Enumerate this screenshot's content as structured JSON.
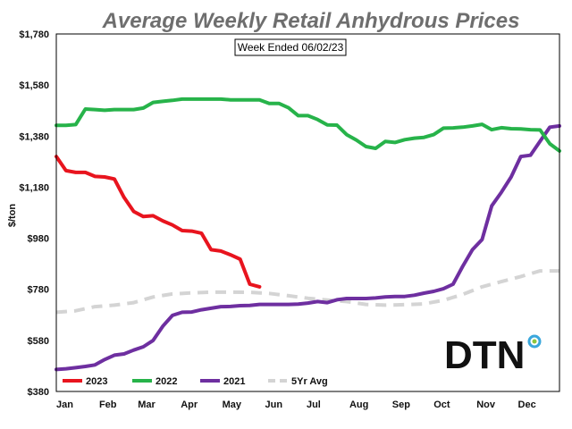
{
  "chart_data": {
    "type": "line",
    "title": "Average Weekly Retail Anhydrous Prices",
    "subtitle": "Week Ended 06/02/23",
    "ylabel": "$/ton",
    "xlabel": "",
    "ylim": [
      380,
      1780
    ],
    "xlim": [
      0,
      52
    ],
    "y_ticks": [
      "$1,780",
      "$1,580",
      "$1,380",
      "$1,180",
      "$980",
      "$780",
      "$580",
      "$380"
    ],
    "y_tick_values": [
      1780,
      1580,
      1380,
      1180,
      980,
      780,
      580,
      380
    ],
    "x_ticks": [
      "Jan",
      "Feb",
      "Mar",
      "Apr",
      "May",
      "Jun",
      "Jul",
      "Aug",
      "Sep",
      "Oct",
      "Nov",
      "Dec"
    ],
    "x_tick_values": [
      0,
      4.43,
      8.43,
      12.86,
      17.14,
      21.57,
      25.86,
      30.29,
      34.71,
      39,
      43.43,
      47.71
    ],
    "grid": false,
    "legend_placement": "bottom-left",
    "series": [
      {
        "name": "2023",
        "color": "#e8141e",
        "dashed": false,
        "x": [
          0,
          1,
          2,
          3,
          4,
          5,
          6,
          7,
          8,
          9,
          10,
          11,
          12,
          13,
          14,
          15,
          16,
          17,
          18,
          19,
          20,
          21
        ],
        "y": [
          1300,
          1245,
          1238,
          1238,
          1222,
          1220,
          1212,
          1140,
          1085,
          1065,
          1068,
          1048,
          1032,
          1010,
          1008,
          1000,
          935,
          930,
          915,
          898,
          800,
          790
        ]
      },
      {
        "name": "2022",
        "color": "#27b34a",
        "dashed": false,
        "x": [
          0,
          1,
          2,
          3,
          4,
          5,
          6,
          7,
          8,
          9,
          10,
          11,
          12,
          13,
          14,
          15,
          16,
          17,
          18,
          19,
          20,
          21,
          22,
          23,
          24,
          25,
          26,
          27,
          28,
          29,
          30,
          31,
          32,
          33,
          34,
          35,
          36,
          37,
          38,
          39,
          40,
          41,
          42,
          43,
          44,
          45,
          46,
          47,
          48,
          49,
          50,
          51,
          52
        ],
        "y": [
          1422,
          1422,
          1425,
          1486,
          1484,
          1481,
          1484,
          1484,
          1484,
          1490,
          1512,
          1516,
          1520,
          1525,
          1525,
          1525,
          1525,
          1525,
          1522,
          1522,
          1522,
          1522,
          1508,
          1508,
          1491,
          1460,
          1460,
          1445,
          1424,
          1423,
          1386,
          1365,
          1339,
          1332,
          1359,
          1355,
          1366,
          1372,
          1375,
          1386,
          1411,
          1412,
          1415,
          1420,
          1426,
          1405,
          1413,
          1409,
          1408,
          1405,
          1404,
          1350,
          1322
        ]
      },
      {
        "name": "2021",
        "color": "#6e2fa0",
        "dashed": false,
        "x": [
          0,
          1,
          2,
          3,
          4,
          5,
          6,
          7,
          8,
          9,
          10,
          11,
          12,
          13,
          14,
          15,
          16,
          17,
          18,
          19,
          20,
          21,
          22,
          23,
          24,
          25,
          26,
          27,
          28,
          29,
          30,
          31,
          32,
          33,
          34,
          35,
          36,
          37,
          38,
          39,
          40,
          41,
          42,
          43,
          44,
          45,
          46,
          47,
          48,
          49,
          50,
          51,
          52
        ],
        "y": [
          466,
          469,
          473,
          478,
          484,
          505,
          522,
          527,
          542,
          555,
          580,
          635,
          678,
          690,
          691,
          700,
          706,
          712,
          713,
          716,
          717,
          721,
          721,
          721,
          721,
          722,
          726,
          732,
          728,
          739,
          744,
          744,
          744,
          746,
          750,
          752,
          752,
          757,
          765,
          772,
          782,
          800,
          870,
          935,
          975,
          1107,
          1160,
          1220,
          1300,
          1305,
          1360,
          1415,
          1420
        ]
      },
      {
        "name": "5Yr Avg",
        "color": "#d4d4d4",
        "dashed": true,
        "x": [
          0,
          2,
          4,
          6,
          8,
          10,
          12,
          14,
          16,
          18,
          20,
          22,
          24,
          26,
          28,
          30,
          32,
          34,
          36,
          38,
          40,
          42,
          44,
          46,
          48,
          50,
          52
        ],
        "y": [
          690,
          696,
          712,
          718,
          728,
          750,
          762,
          766,
          769,
          769,
          768,
          764,
          755,
          745,
          738,
          732,
          721,
          718,
          720,
          723,
          737,
          760,
          790,
          810,
          830,
          852,
          852
        ]
      }
    ]
  },
  "logo": {
    "text": "DTN",
    "ring_colors": [
      "#3aa7dc",
      "#8cc63e"
    ]
  }
}
